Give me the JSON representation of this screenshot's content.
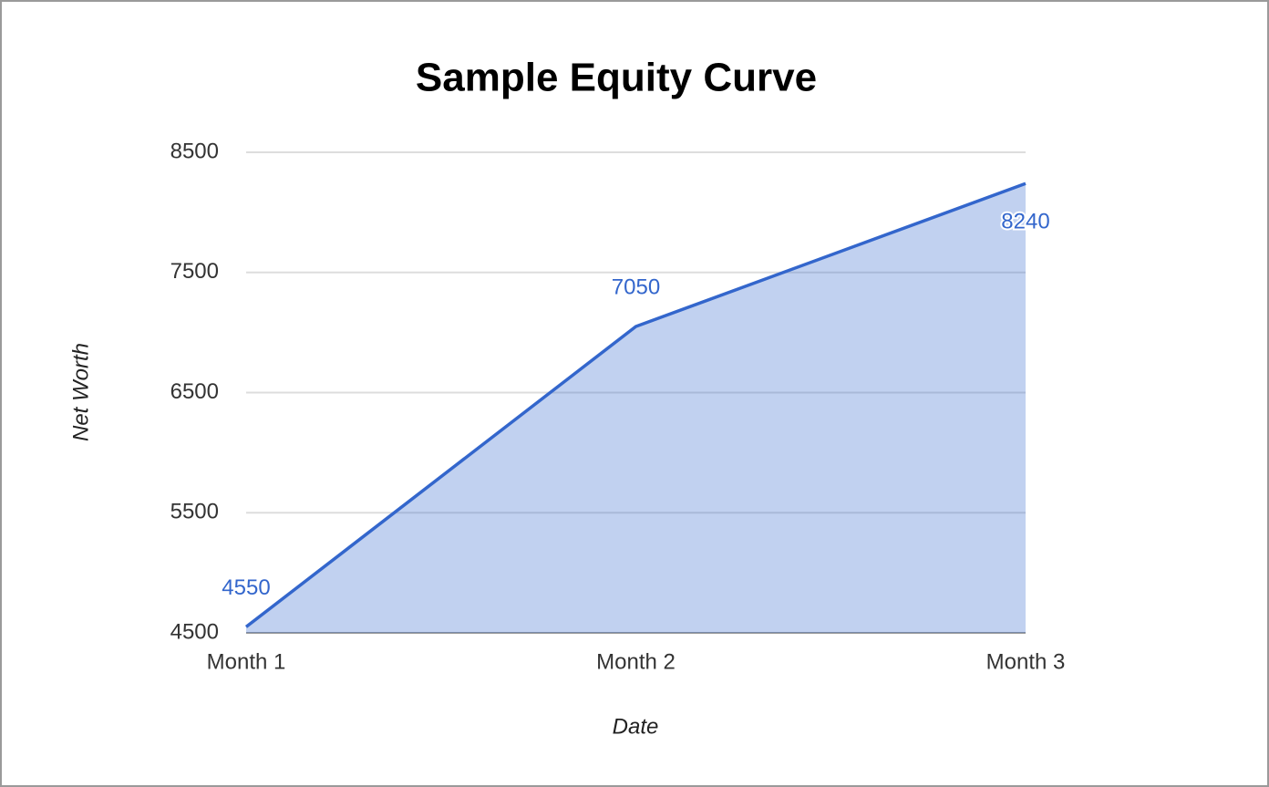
{
  "chart_data": {
    "type": "area",
    "title": "Sample Equity Curve",
    "x_label": "Date",
    "y_label": "Net Worth",
    "categories": [
      "Month 1",
      "Month 2",
      "Month 3"
    ],
    "values": [
      4550,
      7050,
      8240
    ],
    "color": "#3366cc",
    "ylim": [
      4500,
      8500
    ],
    "yticks": [
      4500,
      5500,
      6500,
      7500,
      8500
    ],
    "grid": true
  }
}
